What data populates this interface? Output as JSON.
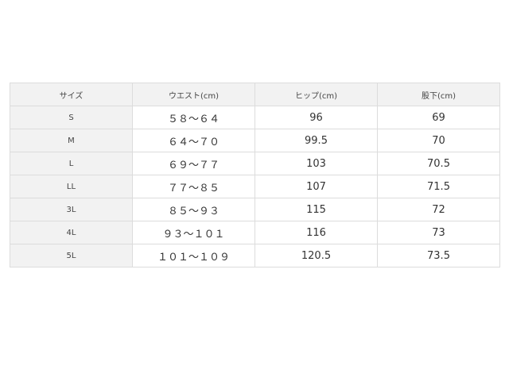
{
  "headers": [
    "サイズ",
    "ウエスト(cm)",
    "ヒップ(cm)",
    "股下(cm)"
  ],
  "rows": [
    [
      "S",
      "５８～６４",
      "96",
      "69"
    ],
    [
      "M",
      "６４～７０",
      "99.5",
      "70"
    ],
    [
      "L",
      "６９～７７",
      "103",
      "70.5"
    ],
    [
      "LL",
      "７７～８５",
      "107",
      "71.5"
    ],
    [
      "3L",
      "８５～９３",
      "115",
      "72"
    ],
    [
      "4L",
      "９３～１０１",
      "116",
      "73"
    ],
    [
      "5L",
      "１０１～１０９",
      "120.5",
      "73.5"
    ]
  ]
}
